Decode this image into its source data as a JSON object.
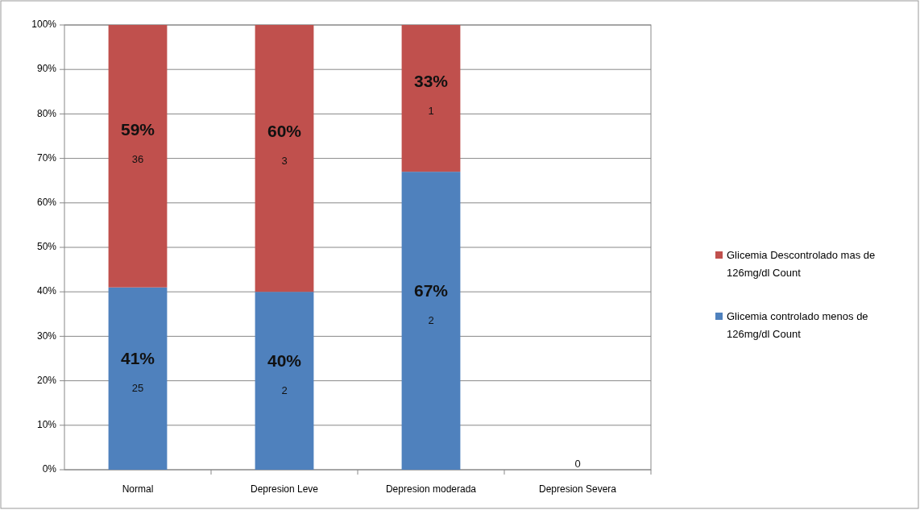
{
  "chart_data": {
    "type": "bar",
    "stacked": true,
    "categories": [
      "Normal",
      "Depresion Leve",
      "Depresion moderada",
      "Depresion Severa"
    ],
    "series": [
      {
        "name": "Glicemia controlado menos de 126mg/dl Count",
        "color": "#4f81bd",
        "values": [
          41,
          40,
          67,
          0
        ],
        "value_labels": [
          "41%\n25",
          "40%\n2",
          "67%\n2",
          "0"
        ]
      },
      {
        "name": "Glicemia Descontrolado mas de 126mg/dl Count",
        "color": "#c0504d",
        "values": [
          59,
          60,
          33,
          0
        ],
        "value_labels": [
          "59%\n36",
          "60%\n3",
          "33%\n1",
          null
        ]
      }
    ],
    "ylim": [
      0,
      100
    ],
    "yticks": [
      {
        "value": 0,
        "label": "0%"
      },
      {
        "value": 10,
        "label": "10%"
      },
      {
        "value": 20,
        "label": "20%"
      },
      {
        "value": 30,
        "label": "30%"
      },
      {
        "value": 40,
        "label": "40%"
      },
      {
        "value": 50,
        "label": "50%"
      },
      {
        "value": 60,
        "label": "60%"
      },
      {
        "value": 70,
        "label": "70%"
      },
      {
        "value": 80,
        "label": "80%"
      },
      {
        "value": 90,
        "label": "90%"
      },
      {
        "value": 100,
        "label": "100%"
      }
    ],
    "grid": "y",
    "legend": "right"
  }
}
